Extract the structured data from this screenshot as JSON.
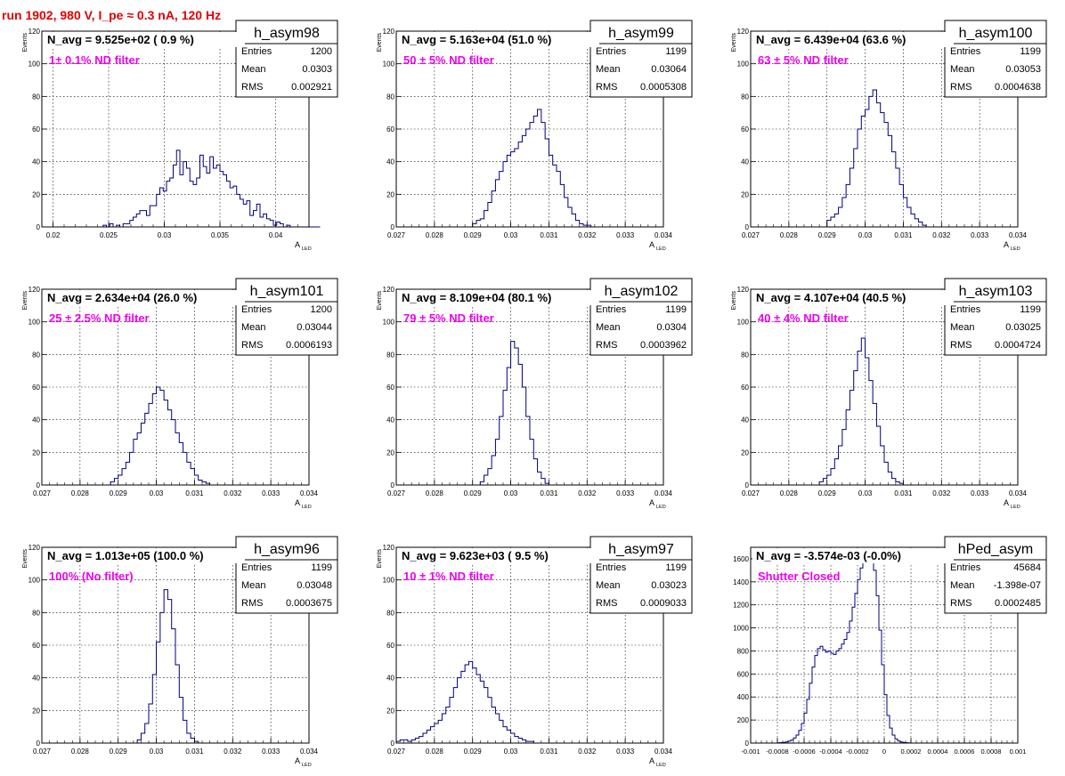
{
  "page_title": "run 1902,   980 V, I_pe ≈ 0.3 nA, 120 Hz",
  "stat_labels": {
    "entries": "Entries",
    "mean": "Mean",
    "rms": "RMS"
  },
  "chart_data": [
    {
      "type": "bar",
      "name": "h_asym98",
      "header": "N_avg = 9.525e+02 ( 0.9 %)",
      "filter": "1± 0.1% ND filter",
      "entries": "1200",
      "mean": "0.0303",
      "rms": "0.002921",
      "xlabel": "A",
      "xlabel_sub": "LED",
      "ylabel": "Events",
      "xlim": [
        0.019,
        0.043
      ],
      "ylim": [
        0,
        120
      ],
      "xticks": [
        0.02,
        0.025,
        0.03,
        0.035,
        0.04
      ],
      "xtick_labels": [
        "0.02",
        "0.025",
        "0.03",
        "0.035",
        "0.04"
      ],
      "yticks": [
        0,
        20,
        40,
        60,
        80,
        100,
        120
      ],
      "ytick_labels": [
        "0",
        "20",
        "40",
        "60",
        "80",
        "100",
        "120"
      ],
      "hist": {
        "x_start": 0.02,
        "bin_width": 0.0003,
        "counts": [
          0,
          0,
          0,
          0,
          0,
          0,
          0,
          0,
          0,
          0,
          0,
          0,
          0,
          0,
          0,
          1,
          0,
          2,
          0,
          1,
          0,
          2,
          2,
          4,
          6,
          8,
          10,
          10,
          7,
          13,
          13,
          20,
          24,
          22,
          28,
          30,
          38,
          47,
          32,
          40,
          36,
          28,
          26,
          30,
          44,
          37,
          33,
          43,
          36,
          38,
          34,
          32,
          28,
          24,
          25,
          20,
          17,
          14,
          16,
          7,
          10,
          14,
          6,
          8,
          5,
          4,
          1,
          3,
          2,
          0,
          1,
          0,
          0,
          0,
          0,
          0,
          0,
          0,
          0,
          0
        ]
      }
    },
    {
      "type": "bar",
      "name": "h_asym99",
      "header": "N_avg = 5.163e+04 (51.0 %)",
      "filter": "50 ± 5% ND filter",
      "entries": "1199",
      "mean": "0.03064",
      "rms": "0.0005308",
      "xlabel": "A",
      "xlabel_sub": "LED",
      "ylabel": "Events",
      "xlim": [
        0.027,
        0.034
      ],
      "ylim": [
        0,
        120
      ],
      "xticks": [
        0.027,
        0.028,
        0.029,
        0.03,
        0.031,
        0.032,
        0.033,
        0.034
      ],
      "xtick_labels": [
        "0.027",
        "0.028",
        "0.029",
        "0.03",
        "0.031",
        "0.032",
        "0.033",
        "0.034"
      ],
      "yticks": [
        0,
        20,
        40,
        60,
        80,
        100,
        120
      ],
      "ytick_labels": [
        "0",
        "20",
        "40",
        "60",
        "80",
        "100",
        "120"
      ],
      "hist": {
        "x_start": 0.029,
        "bin_width": 0.0001,
        "counts": [
          2,
          4,
          5,
          10,
          15,
          22,
          29,
          34,
          40,
          44,
          46,
          48,
          52,
          56,
          60,
          64,
          68,
          72,
          64,
          54,
          44,
          38,
          34,
          26,
          18,
          12,
          8,
          4,
          2,
          1,
          1,
          0
        ]
      }
    },
    {
      "type": "bar",
      "name": "h_asym100",
      "header": "N_avg = 6.439e+04 (63.6 %)",
      "filter": "63 ± 5% ND filter",
      "entries": "1199",
      "mean": "0.03053",
      "rms": "0.0004638",
      "xlabel": "A",
      "xlabel_sub": "LED",
      "ylabel": "Events",
      "xlim": [
        0.027,
        0.034
      ],
      "ylim": [
        0,
        120
      ],
      "xticks": [
        0.027,
        0.028,
        0.029,
        0.03,
        0.031,
        0.032,
        0.033,
        0.034
      ],
      "xtick_labels": [
        "0.027",
        "0.028",
        "0.029",
        "0.03",
        "0.031",
        "0.032",
        "0.033",
        "0.034"
      ],
      "yticks": [
        0,
        20,
        40,
        60,
        80,
        100,
        120
      ],
      "ytick_labels": [
        "0",
        "20",
        "40",
        "60",
        "80",
        "100",
        "120"
      ],
      "hist": {
        "x_start": 0.029,
        "bin_width": 0.0001,
        "counts": [
          4,
          6,
          8,
          12,
          18,
          26,
          36,
          48,
          60,
          68,
          72,
          80,
          84,
          76,
          70,
          64,
          56,
          46,
          36,
          26,
          18,
          12,
          8,
          5,
          3,
          1,
          0,
          0
        ]
      }
    },
    {
      "type": "bar",
      "name": "h_asym101",
      "header": "N_avg = 2.634e+04 (26.0 %)",
      "filter": "25 ± 2.5% ND filter",
      "entries": "1200",
      "mean": "0.03044",
      "rms": "0.0006193",
      "xlabel": "A",
      "xlabel_sub": "LED",
      "ylabel": "Events",
      "xlim": [
        0.027,
        0.034
      ],
      "ylim": [
        0,
        120
      ],
      "xticks": [
        0.027,
        0.028,
        0.029,
        0.03,
        0.031,
        0.032,
        0.033,
        0.034
      ],
      "xtick_labels": [
        "0.027",
        "0.028",
        "0.029",
        "0.03",
        "0.031",
        "0.032",
        "0.033",
        "0.034"
      ],
      "yticks": [
        0,
        20,
        40,
        60,
        80,
        100,
        120
      ],
      "ytick_labels": [
        "0",
        "20",
        "40",
        "60",
        "80",
        "100",
        "120"
      ],
      "hist": {
        "x_start": 0.0288,
        "bin_width": 0.0001,
        "counts": [
          2,
          4,
          6,
          10,
          14,
          20,
          28,
          32,
          38,
          44,
          50,
          56,
          60,
          58,
          52,
          46,
          40,
          32,
          26,
          20,
          14,
          10,
          6,
          3,
          2,
          1,
          0
        ]
      }
    },
    {
      "type": "bar",
      "name": "h_asym102",
      "header": "N_avg = 8.109e+04 (80.1 %)",
      "filter": "79 ± 5% ND filter",
      "entries": "1199",
      "mean": "0.0304",
      "rms": "0.0003962",
      "xlabel": "A",
      "xlabel_sub": "LED",
      "ylabel": "Events",
      "xlim": [
        0.027,
        0.034
      ],
      "ylim": [
        0,
        120
      ],
      "xticks": [
        0.027,
        0.028,
        0.029,
        0.03,
        0.031,
        0.032,
        0.033,
        0.034
      ],
      "xtick_labels": [
        "0.027",
        "0.028",
        "0.029",
        "0.03",
        "0.031",
        "0.032",
        "0.033",
        "0.034"
      ],
      "yticks": [
        0,
        20,
        40,
        60,
        80,
        100,
        120
      ],
      "ytick_labels": [
        "0",
        "20",
        "40",
        "60",
        "80",
        "100",
        "120"
      ],
      "hist": {
        "x_start": 0.0292,
        "bin_width": 0.0001,
        "counts": [
          2,
          6,
          10,
          18,
          28,
          42,
          58,
          72,
          88,
          84,
          74,
          60,
          42,
          28,
          16,
          8,
          4,
          1,
          0
        ]
      }
    },
    {
      "type": "bar",
      "name": "h_asym103",
      "header": "N_avg = 4.107e+04 (40.5 %)",
      "filter": "40 ± 4% ND filter",
      "entries": "1199",
      "mean": "0.03025",
      "rms": "0.0004724",
      "xlabel": "A",
      "xlabel_sub": "LED",
      "ylabel": "Events",
      "xlim": [
        0.027,
        0.034
      ],
      "ylim": [
        0,
        120
      ],
      "xticks": [
        0.027,
        0.028,
        0.029,
        0.03,
        0.031,
        0.032,
        0.033,
        0.034
      ],
      "xtick_labels": [
        "0.027",
        "0.028",
        "0.029",
        "0.03",
        "0.031",
        "0.032",
        "0.033",
        "0.034"
      ],
      "yticks": [
        0,
        20,
        40,
        60,
        80,
        100,
        120
      ],
      "ytick_labels": [
        "0",
        "20",
        "40",
        "60",
        "80",
        "100",
        "120"
      ],
      "hist": {
        "x_start": 0.0288,
        "bin_width": 0.0001,
        "counts": [
          2,
          4,
          6,
          10,
          16,
          24,
          34,
          46,
          58,
          70,
          82,
          90,
          78,
          64,
          50,
          36,
          24,
          14,
          8,
          4,
          2,
          1,
          0
        ]
      }
    },
    {
      "type": "bar",
      "name": "h_asym96",
      "header": "N_avg = 1.013e+05 (100.0 %)",
      "filter": "100% (No filter)",
      "entries": "1199",
      "mean": "0.03048",
      "rms": "0.0003675",
      "xlabel": "A",
      "xlabel_sub": "LED",
      "ylabel": "Events",
      "xlim": [
        0.027,
        0.034
      ],
      "ylim": [
        0,
        120
      ],
      "xticks": [
        0.027,
        0.028,
        0.029,
        0.03,
        0.031,
        0.032,
        0.033,
        0.034
      ],
      "xtick_labels": [
        "0.027",
        "0.028",
        "0.029",
        "0.03",
        "0.031",
        "0.032",
        "0.033",
        "0.034"
      ],
      "yticks": [
        0,
        20,
        40,
        60,
        80,
        100,
        120
      ],
      "ytick_labels": [
        "0",
        "20",
        "40",
        "60",
        "80",
        "100",
        "120"
      ],
      "hist": {
        "x_start": 0.0295,
        "bin_width": 0.0001,
        "counts": [
          2,
          6,
          12,
          24,
          42,
          62,
          80,
          94,
          88,
          70,
          48,
          28,
          14,
          6,
          3,
          1,
          0
        ]
      }
    },
    {
      "type": "bar",
      "name": "h_asym97",
      "header": "N_avg = 9.623e+03 ( 9.5 %)",
      "filter": "10 ± 1% ND filter",
      "entries": "1199",
      "mean": "0.03023",
      "rms": "0.0009033",
      "xlabel": "A",
      "xlabel_sub": "LED",
      "ylabel": "Events",
      "xlim": [
        0.027,
        0.034
      ],
      "ylim": [
        0,
        120
      ],
      "xticks": [
        0.027,
        0.028,
        0.029,
        0.03,
        0.031,
        0.032,
        0.033,
        0.034
      ],
      "xtick_labels": [
        "0.027",
        "0.028",
        "0.029",
        "0.03",
        "0.031",
        "0.032",
        "0.033",
        "0.034"
      ],
      "yticks": [
        0,
        20,
        40,
        60,
        80,
        100,
        120
      ],
      "ytick_labels": [
        "0",
        "20",
        "40",
        "60",
        "80",
        "100",
        "120"
      ],
      "hist": {
        "x_start": 0.027,
        "bin_width": 0.0001,
        "counts": [
          1,
          2,
          2,
          1,
          2,
          3,
          4,
          6,
          8,
          10,
          12,
          14,
          18,
          22,
          28,
          34,
          40,
          44,
          48,
          50,
          46,
          42,
          38,
          34,
          28,
          22,
          18,
          14,
          10,
          8,
          6,
          4,
          3,
          2,
          1,
          1,
          0,
          0
        ]
      }
    },
    {
      "type": "bar",
      "name": "hPed_asym",
      "header": "N_avg = -3.574e-03 (-0.0%)",
      "filter": "Shutter Closed",
      "entries": "45684",
      "mean": "-1.398e-07",
      "rms": "0.0002485",
      "xlabel": "",
      "xlabel_sub": "",
      "ylabel": "",
      "xlim": [
        -0.001,
        0.001
      ],
      "ylim": [
        0,
        1700
      ],
      "xticks": [
        -0.001,
        -0.0008,
        -0.0006,
        -0.0004,
        -0.0002,
        0,
        0.0002,
        0.0004,
        0.0006,
        0.0008,
        0.001
      ],
      "xtick_labels": [
        "-0.001",
        "-0.0008",
        "-0.0006",
        "-0.0004",
        "-0.0002",
        "0",
        "0.0002",
        "0.0004",
        "0.0006",
        "0.0008",
        "0.001"
      ],
      "yticks": [
        0,
        200,
        400,
        600,
        800,
        1000,
        1200,
        1400,
        1600
      ],
      "ytick_labels": [
        "0",
        "200",
        "400",
        "600",
        "800",
        "1000",
        "1200",
        "1400",
        "1600"
      ],
      "hist": {
        "x_start": -0.0008,
        "bin_width": 2e-05,
        "counts": [
          2,
          4,
          6,
          10,
          16,
          26,
          44,
          70,
          110,
          170,
          260,
          380,
          520,
          660,
          760,
          820,
          840,
          810,
          790,
          800,
          780,
          770,
          800,
          820,
          860,
          900,
          960,
          1060,
          1180,
          1300,
          1420,
          1520,
          1580,
          1640,
          1660,
          1620,
          1500,
          1280,
          980,
          680,
          420,
          240,
          130,
          70,
          36,
          18,
          10,
          5,
          3,
          1,
          0
        ]
      }
    }
  ]
}
